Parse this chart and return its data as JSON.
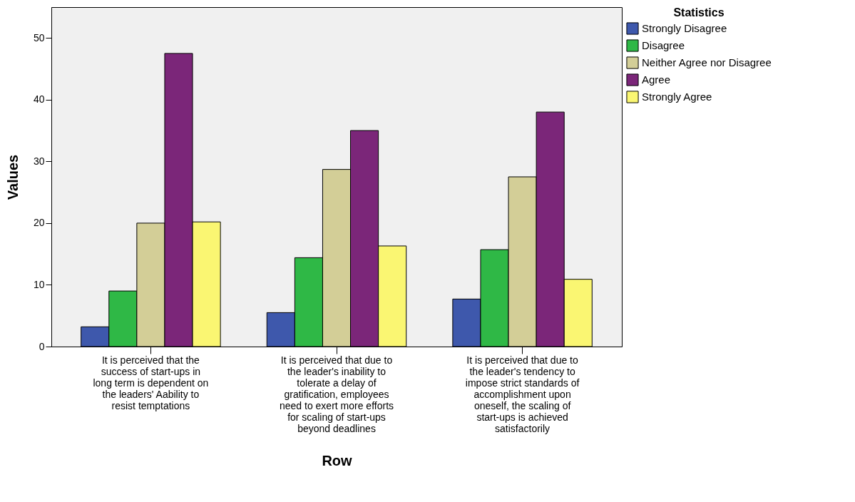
{
  "chart_data": {
    "type": "bar",
    "xlabel": "Row",
    "ylabel": "Values",
    "legend_title": "Statistics",
    "legend": "right",
    "categories": [
      "It is perceived that the success of start-ups in long term is dependent on the leaders' Aability to resist temptations",
      "It is perceived that due to the leader's inability to tolerate a delay of gratification, employees need to exert more efforts for scaling of start-ups beyond deadlines",
      "It is perceived that due to the leader's tendency to impose strict standards of accomplishment upon oneself, the scaling of start-ups is achieved satisfactorily"
    ],
    "series": [
      {
        "name": "Strongly Disagree",
        "color": "#3e58ac",
        "values": [
          3.2,
          5.5,
          7.7
        ]
      },
      {
        "name": "Disagree",
        "color": "#2fb846",
        "values": [
          9.0,
          14.4,
          15.7
        ]
      },
      {
        "name": "Neither Agree nor Disagree",
        "color": "#d3ce97",
        "values": [
          20.0,
          28.7,
          27.5
        ]
      },
      {
        "name": "Agree",
        "color": "#7b2679",
        "values": [
          47.5,
          35.0,
          38.0
        ]
      },
      {
        "name": "Strongly Agree",
        "color": "#faf672",
        "values": [
          20.2,
          16.3,
          10.9
        ]
      }
    ],
    "ylim": [
      0,
      55
    ],
    "yticks": [
      0,
      10,
      20,
      30,
      40,
      50
    ],
    "grid": false
  }
}
